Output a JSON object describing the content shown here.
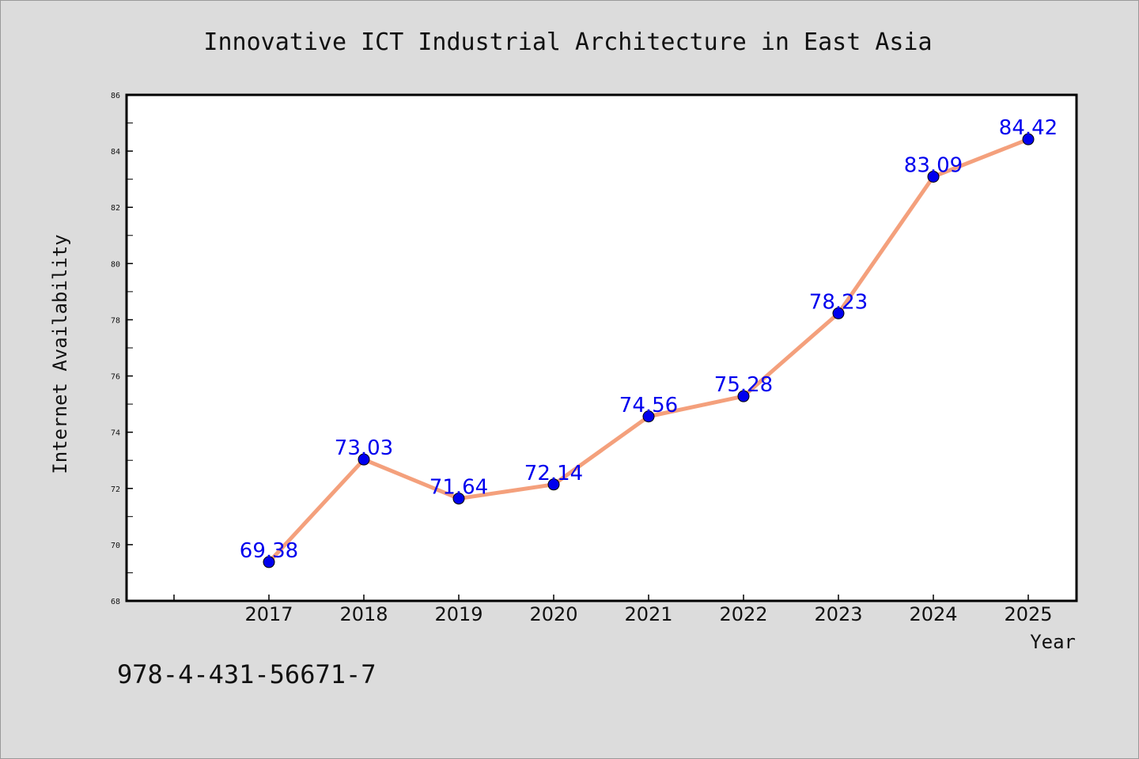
{
  "chart_data": {
    "type": "line",
    "title": "Innovative ICT Industrial Architecture in East Asia",
    "xlabel": "Year",
    "ylabel": "Internet Availability",
    "categories": [
      "2017",
      "2018",
      "2019",
      "2020",
      "2021",
      "2022",
      "2023",
      "2024",
      "2025"
    ],
    "series": [
      {
        "values": [
          69.38,
          73.03,
          71.64,
          72.14,
          74.56,
          75.28,
          78.23,
          83.09,
          84.42
        ],
        "labels": [
          "69.38",
          "73.03",
          "71.64",
          "72.14",
          "74.56",
          "75.28",
          "78.23",
          "83.09",
          "84.42"
        ],
        "line_color": "#f4a07c",
        "marker_color": "#0000ee"
      }
    ],
    "ylim": [
      68,
      86
    ],
    "yticks": [
      "68",
      "70",
      "72",
      "74",
      "76",
      "78",
      "80",
      "82",
      "84",
      "86"
    ],
    "grid": false,
    "legend": "none"
  },
  "footer": {
    "isbn": "978-4-431-56671-7"
  },
  "colors": {
    "background": "#dcdcdc",
    "plot_background": "#ffffff",
    "line": "#f4a07c",
    "marker": "#0000ee",
    "data_label": "#0000ee"
  }
}
